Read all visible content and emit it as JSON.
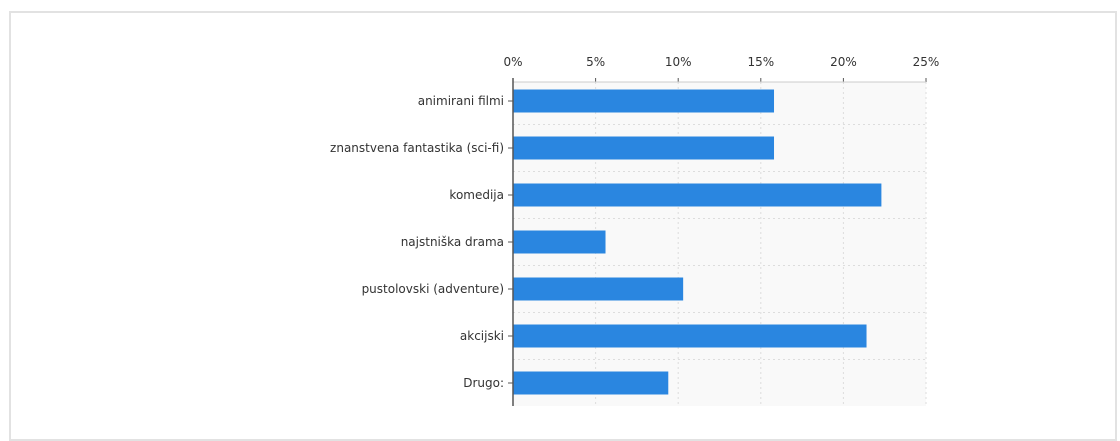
{
  "chart_data": {
    "type": "bar",
    "orientation": "horizontal",
    "categories": [
      "animirani filmi",
      "znanstvena fantastika (sci-fi)",
      "komedija",
      "najstniška drama",
      "pustolovski (adventure)",
      "akcijski",
      "Drugo:"
    ],
    "values": [
      15.8,
      15.8,
      22.3,
      5.6,
      10.3,
      21.4,
      9.4
    ],
    "xlim": [
      0,
      25
    ],
    "xticks": [
      "0%",
      "5%",
      "10%",
      "15%",
      "20%",
      "25%"
    ],
    "xaxis_position": "top",
    "grid": true,
    "legend": "none",
    "colors": {
      "bar": "#2a86e0",
      "plot_bg": "#f9f9f9",
      "grid": "#dddddd",
      "axis": "#555555"
    }
  }
}
